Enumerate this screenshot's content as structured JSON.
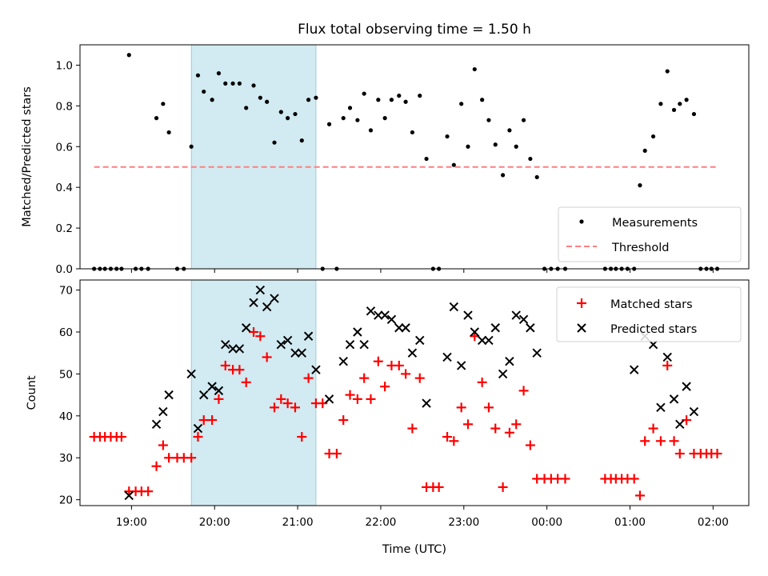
{
  "chart_data": {
    "type": "scatter",
    "title": "Flux total observing time = 1.50 h",
    "xlabel": "Time (UTC)",
    "x_ticks": [
      "19:00",
      "20:00",
      "21:00",
      "22:00",
      "23:00",
      "00:00",
      "01:00",
      "02:00"
    ],
    "x_range_hours": [
      18.38,
      26.43
    ],
    "shaded_window_hours": [
      19.72,
      21.22
    ],
    "shade_color": "#add8e6",
    "panels": [
      {
        "ylabel": "Matched/Predicted stars",
        "ylim": [
          0,
          1.1
        ],
        "yticks": [
          "0.0",
          "0.2",
          "0.4",
          "0.6",
          "0.8",
          "1.0"
        ],
        "legend_position": "lower right",
        "threshold": {
          "name": "Threshold",
          "value": 0.5,
          "x": [
            18.55,
            26.05
          ],
          "color": "#ff7f7f"
        },
        "series": [
          {
            "name": "Measurements",
            "color": "#000000",
            "points": [
              [
                18.55,
                0
              ],
              [
                18.62,
                0
              ],
              [
                18.68,
                0
              ],
              [
                18.75,
                0
              ],
              [
                18.82,
                0
              ],
              [
                18.88,
                0
              ],
              [
                18.97,
                1.05
              ],
              [
                19.05,
                0
              ],
              [
                19.12,
                0
              ],
              [
                19.2,
                0
              ],
              [
                19.3,
                0.74
              ],
              [
                19.38,
                0.81
              ],
              [
                19.45,
                0.67
              ],
              [
                19.55,
                0
              ],
              [
                19.63,
                0
              ],
              [
                19.72,
                0.6
              ],
              [
                19.8,
                0.95
              ],
              [
                19.87,
                0.87
              ],
              [
                19.97,
                0.83
              ],
              [
                20.05,
                0.96
              ],
              [
                20.13,
                0.91
              ],
              [
                20.22,
                0.91
              ],
              [
                20.3,
                0.91
              ],
              [
                20.38,
                0.79
              ],
              [
                20.47,
                0.9
              ],
              [
                20.55,
                0.84
              ],
              [
                20.63,
                0.82
              ],
              [
                20.72,
                0.62
              ],
              [
                20.8,
                0.77
              ],
              [
                20.88,
                0.74
              ],
              [
                20.97,
                0.76
              ],
              [
                21.05,
                0.63
              ],
              [
                21.13,
                0.83
              ],
              [
                21.22,
                0.84
              ],
              [
                21.3,
                0
              ],
              [
                21.38,
                0.71
              ],
              [
                21.47,
                0
              ],
              [
                21.55,
                0.74
              ],
              [
                21.63,
                0.79
              ],
              [
                21.72,
                0.73
              ],
              [
                21.8,
                0.86
              ],
              [
                21.88,
                0.68
              ],
              [
                21.97,
                0.83
              ],
              [
                22.05,
                0.74
              ],
              [
                22.13,
                0.83
              ],
              [
                22.22,
                0.85
              ],
              [
                22.3,
                0.82
              ],
              [
                22.38,
                0.67
              ],
              [
                22.47,
                0.85
              ],
              [
                22.55,
                0.54
              ],
              [
                22.63,
                0
              ],
              [
                22.7,
                0
              ],
              [
                22.8,
                0.65
              ],
              [
                22.88,
                0.51
              ],
              [
                22.97,
                0.81
              ],
              [
                23.05,
                0.6
              ],
              [
                23.13,
                0.98
              ],
              [
                23.22,
                0.83
              ],
              [
                23.3,
                0.73
              ],
              [
                23.38,
                0.61
              ],
              [
                23.47,
                0.46
              ],
              [
                23.55,
                0.68
              ],
              [
                23.63,
                0.6
              ],
              [
                23.72,
                0.73
              ],
              [
                23.8,
                0.54
              ],
              [
                23.88,
                0.45
              ],
              [
                23.97,
                0
              ],
              [
                24.05,
                0
              ],
              [
                24.13,
                0
              ],
              [
                24.22,
                0
              ],
              [
                24.7,
                0
              ],
              [
                24.77,
                0
              ],
              [
                24.83,
                0
              ],
              [
                24.9,
                0
              ],
              [
                24.97,
                0
              ],
              [
                25.05,
                0
              ],
              [
                25.12,
                0.41
              ],
              [
                25.18,
                0.58
              ],
              [
                25.28,
                0.65
              ],
              [
                25.37,
                0.81
              ],
              [
                25.45,
                0.97
              ],
              [
                25.53,
                0.78
              ],
              [
                25.6,
                0.81
              ],
              [
                25.68,
                0.83
              ],
              [
                25.77,
                0.76
              ],
              [
                25.85,
                0
              ],
              [
                25.92,
                0
              ],
              [
                25.98,
                0
              ],
              [
                26.05,
                0
              ]
            ]
          }
        ]
      },
      {
        "ylabel": "Count",
        "ylim": [
          18.6,
          72.4
        ],
        "yticks": [
          "20",
          "30",
          "40",
          "50",
          "60",
          "70"
        ],
        "legend_position": "upper right",
        "series": [
          {
            "name": "Matched stars",
            "color": "#ff0000",
            "marker": "+",
            "points": [
              [
                18.55,
                35
              ],
              [
                18.62,
                35
              ],
              [
                18.68,
                35
              ],
              [
                18.75,
                35
              ],
              [
                18.82,
                35
              ],
              [
                18.88,
                35
              ],
              [
                18.97,
                22
              ],
              [
                19.05,
                22
              ],
              [
                19.12,
                22
              ],
              [
                19.2,
                22
              ],
              [
                19.3,
                28
              ],
              [
                19.38,
                33
              ],
              [
                19.45,
                30
              ],
              [
                19.55,
                30
              ],
              [
                19.63,
                30
              ],
              [
                19.72,
                30
              ],
              [
                19.8,
                35
              ],
              [
                19.87,
                39
              ],
              [
                19.97,
                39
              ],
              [
                20.05,
                44
              ],
              [
                20.13,
                52
              ],
              [
                20.22,
                51
              ],
              [
                20.3,
                51
              ],
              [
                20.38,
                48
              ],
              [
                20.47,
                60
              ],
              [
                20.55,
                59
              ],
              [
                20.63,
                54
              ],
              [
                20.72,
                42
              ],
              [
                20.8,
                44
              ],
              [
                20.88,
                43
              ],
              [
                20.97,
                42
              ],
              [
                21.05,
                35
              ],
              [
                21.13,
                49
              ],
              [
                21.22,
                43
              ],
              [
                21.3,
                43
              ],
              [
                21.38,
                31
              ],
              [
                21.47,
                31
              ],
              [
                21.55,
                39
              ],
              [
                21.63,
                45
              ],
              [
                21.72,
                44
              ],
              [
                21.8,
                49
              ],
              [
                21.88,
                44
              ],
              [
                21.97,
                53
              ],
              [
                22.05,
                47
              ],
              [
                22.13,
                52
              ],
              [
                22.22,
                52
              ],
              [
                22.3,
                50
              ],
              [
                22.38,
                37
              ],
              [
                22.47,
                49
              ],
              [
                22.55,
                23
              ],
              [
                22.63,
                23
              ],
              [
                22.7,
                23
              ],
              [
                22.8,
                35
              ],
              [
                22.88,
                34
              ],
              [
                22.97,
                42
              ],
              [
                23.05,
                38
              ],
              [
                23.13,
                59
              ],
              [
                23.22,
                48
              ],
              [
                23.3,
                42
              ],
              [
                23.38,
                37
              ],
              [
                23.47,
                23
              ],
              [
                23.55,
                36
              ],
              [
                23.63,
                38
              ],
              [
                23.72,
                46
              ],
              [
                23.8,
                33
              ],
              [
                23.88,
                25
              ],
              [
                23.97,
                25
              ],
              [
                24.05,
                25
              ],
              [
                24.13,
                25
              ],
              [
                24.22,
                25
              ],
              [
                24.7,
                25
              ],
              [
                24.77,
                25
              ],
              [
                24.83,
                25
              ],
              [
                24.9,
                25
              ],
              [
                24.97,
                25
              ],
              [
                25.05,
                25
              ],
              [
                25.12,
                21
              ],
              [
                25.18,
                34
              ],
              [
                25.28,
                37
              ],
              [
                25.37,
                34
              ],
              [
                25.45,
                52
              ],
              [
                25.53,
                34
              ],
              [
                25.6,
                31
              ],
              [
                25.68,
                39
              ],
              [
                25.77,
                31
              ],
              [
                25.85,
                31
              ],
              [
                25.92,
                31
              ],
              [
                25.98,
                31
              ],
              [
                26.05,
                31
              ]
            ]
          },
          {
            "name": "Predicted stars",
            "color": "#000000",
            "marker": "x",
            "points": [
              [
                18.97,
                21
              ],
              [
                19.3,
                38
              ],
              [
                19.38,
                41
              ],
              [
                19.45,
                45
              ],
              [
                19.72,
                50
              ],
              [
                19.8,
                37
              ],
              [
                19.87,
                45
              ],
              [
                19.97,
                47
              ],
              [
                20.05,
                46
              ],
              [
                20.13,
                57
              ],
              [
                20.22,
                56
              ],
              [
                20.3,
                56
              ],
              [
                20.38,
                61
              ],
              [
                20.47,
                67
              ],
              [
                20.55,
                70
              ],
              [
                20.63,
                66
              ],
              [
                20.72,
                68
              ],
              [
                20.8,
                57
              ],
              [
                20.88,
                58
              ],
              [
                20.97,
                55
              ],
              [
                21.05,
                55
              ],
              [
                21.13,
                59
              ],
              [
                21.22,
                51
              ],
              [
                21.38,
                44
              ],
              [
                21.55,
                53
              ],
              [
                21.63,
                57
              ],
              [
                21.72,
                60
              ],
              [
                21.8,
                57
              ],
              [
                21.88,
                65
              ],
              [
                21.97,
                64
              ],
              [
                22.05,
                64
              ],
              [
                22.13,
                63
              ],
              [
                22.22,
                61
              ],
              [
                22.3,
                61
              ],
              [
                22.38,
                55
              ],
              [
                22.47,
                58
              ],
              [
                22.55,
                43
              ],
              [
                22.8,
                54
              ],
              [
                22.88,
                66
              ],
              [
                22.97,
                52
              ],
              [
                23.05,
                64
              ],
              [
                23.13,
                60
              ],
              [
                23.22,
                58
              ],
              [
                23.3,
                58
              ],
              [
                23.38,
                61
              ],
              [
                23.47,
                50
              ],
              [
                23.55,
                53
              ],
              [
                23.63,
                64
              ],
              [
                23.72,
                63
              ],
              [
                23.8,
                61
              ],
              [
                23.88,
                55
              ],
              [
                25.05,
                51
              ],
              [
                25.18,
                59
              ],
              [
                25.28,
                57
              ],
              [
                25.37,
                42
              ],
              [
                25.45,
                54
              ],
              [
                25.53,
                44
              ],
              [
                25.6,
                38
              ],
              [
                25.68,
                47
              ],
              [
                25.77,
                41
              ]
            ]
          }
        ]
      }
    ]
  }
}
